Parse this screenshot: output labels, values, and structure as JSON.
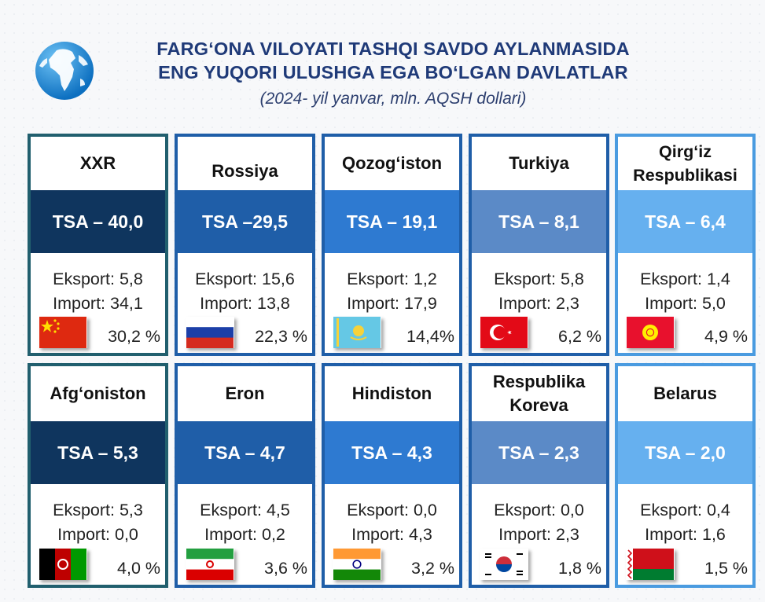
{
  "header": {
    "title_line1": "FARG‘ONA VILOYATI TASHQI SAVDO AYLANMASIDA",
    "title_line2": "ENG YUQORI ULUSHGA EGA BO‘LGAN DAVLATLAR",
    "subtitle": "(2024- yil yanvar, mln. AQSH dollari)"
  },
  "colors": {
    "tsa_dark_navy": "#0f355e",
    "tsa_blue": "#1f5ea8",
    "tsa_bright_blue": "#2e7ad1",
    "tsa_steel_blue": "#5b8ac7",
    "tsa_light_blue": "#66b0ef",
    "title": "#1f3a78"
  },
  "cards": [
    {
      "country": "XXR",
      "tsa": "TSA – 40,0",
      "eksport": "Eksport: 5,8",
      "import": "Import: 34,1",
      "share": "30,2 %",
      "flag": "china-flag-icon"
    },
    {
      "country": "Rossiya",
      "tsa": "TSA –29,5",
      "eksport": "Eksport: 15,6",
      "import": "Import: 13,8",
      "share": "22,3 %",
      "flag": "russia-flag-icon"
    },
    {
      "country": "Qozog‘iston",
      "tsa": "TSA – 19,1",
      "eksport": "Eksport: 1,2",
      "import": "Import: 17,9",
      "share": "14,4%",
      "flag": "kazakhstan-flag-icon"
    },
    {
      "country": "Turkiya",
      "tsa": "TSA – 8,1",
      "eksport": "Eksport: 5,8",
      "import": "Import: 2,3",
      "share": "6,2 %",
      "flag": "turkey-flag-icon"
    },
    {
      "country": "Qirg‘iz Respublikasi",
      "tsa": "TSA – 6,4",
      "eksport": "Eksport: 1,4",
      "import": "Import: 5,0",
      "share": "4,9 %",
      "flag": "kyrgyzstan-flag-icon"
    },
    {
      "country": "Afg‘oniston",
      "tsa": "TSA – 5,3",
      "eksport": "Eksport: 5,3",
      "import": "Import: 0,0",
      "share": "4,0 %",
      "flag": "afghanistan-flag-icon"
    },
    {
      "country": "Eron",
      "tsa": "TSA – 4,7",
      "eksport": "Eksport: 4,5",
      "import": "Import: 0,2",
      "share": "3,6 %",
      "flag": "iran-flag-icon"
    },
    {
      "country": "Hindiston",
      "tsa": "TSA – 4,3",
      "eksport": "Eksport: 0,0",
      "import": "Import: 4,3",
      "share": "3,2 %",
      "flag": "india-flag-icon"
    },
    {
      "country": "Respublika Koreva",
      "tsa": "TSA – 2,3",
      "eksport": "Eksport: 0,0",
      "import": "Import: 2,3",
      "share": "1,8 %",
      "flag": "south-korea-flag-icon"
    },
    {
      "country": "Belarus",
      "tsa": "TSA – 2,0",
      "eksport": "Eksport: 0,4",
      "import": "Import: 1,6",
      "share": "1,5 %",
      "flag": "belarus-flag-icon"
    }
  ]
}
